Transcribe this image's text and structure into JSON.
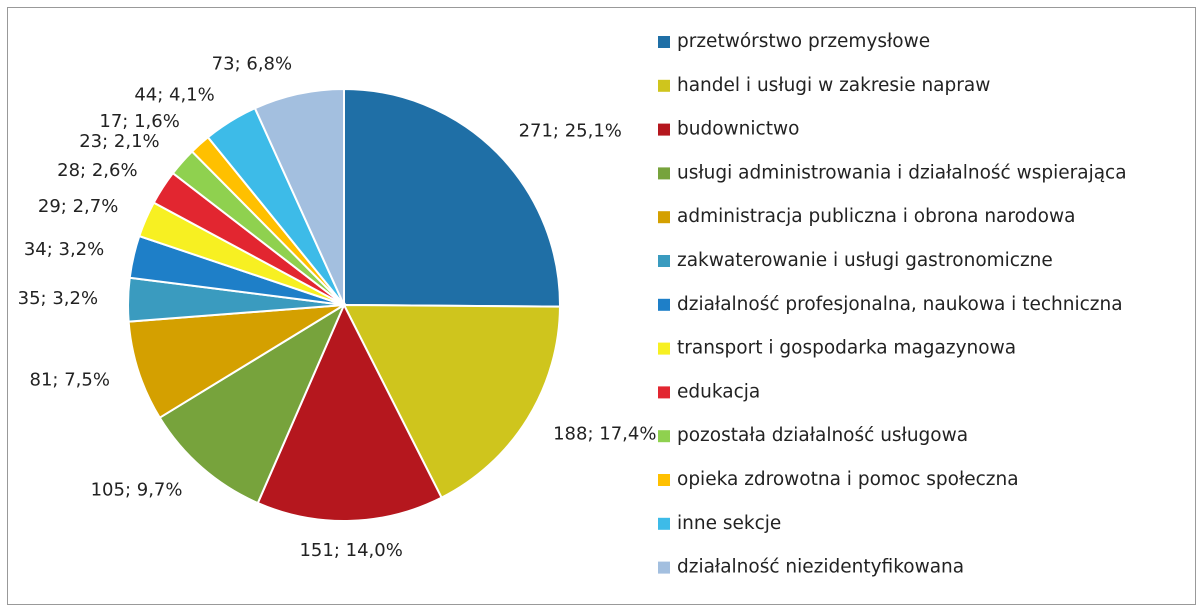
{
  "chart_data": {
    "type": "pie",
    "categories": [
      "przetwórstwo przemysłowe",
      "handel i usługi w zakresie napraw",
      "budownictwo",
      "usługi administrowania i działalność wspierająca",
      "administracja publiczna i obrona narodowa",
      "zakwaterowanie i usługi gastronomiczne",
      "działalność profesjonalna, naukowa i techniczna",
      "transport i gospodarka magazynowa",
      "edukacja",
      "pozostała działalność usługowa",
      "opieka zdrowotna i pomoc społeczna",
      "inne sekcje",
      "działalność niezidentyfikowana"
    ],
    "values": [
      271,
      188,
      151,
      105,
      81,
      35,
      34,
      29,
      28,
      23,
      17,
      44,
      73
    ],
    "value_labels": [
      "271; 25,1%",
      "188; 17,4%",
      "151; 14,0%",
      "105; 9,7%",
      "81; 7,5%",
      "35; 3,2%",
      "34; 3,2%",
      "29; 2,7%",
      "28; 2,6%",
      "23; 2,1%",
      "17; 1,6%",
      "44; 4,1%",
      "73; 6,8%"
    ],
    "colors": [
      "#1f6fa6",
      "#cfc51d",
      "#b5171e",
      "#77a33c",
      "#d4a000",
      "#3a9bbf",
      "#1e7fc8",
      "#f7f022",
      "#e22630",
      "#8fd14f",
      "#ffc000",
      "#3dbbe8",
      "#a3bfdf"
    ],
    "legend": "right"
  }
}
